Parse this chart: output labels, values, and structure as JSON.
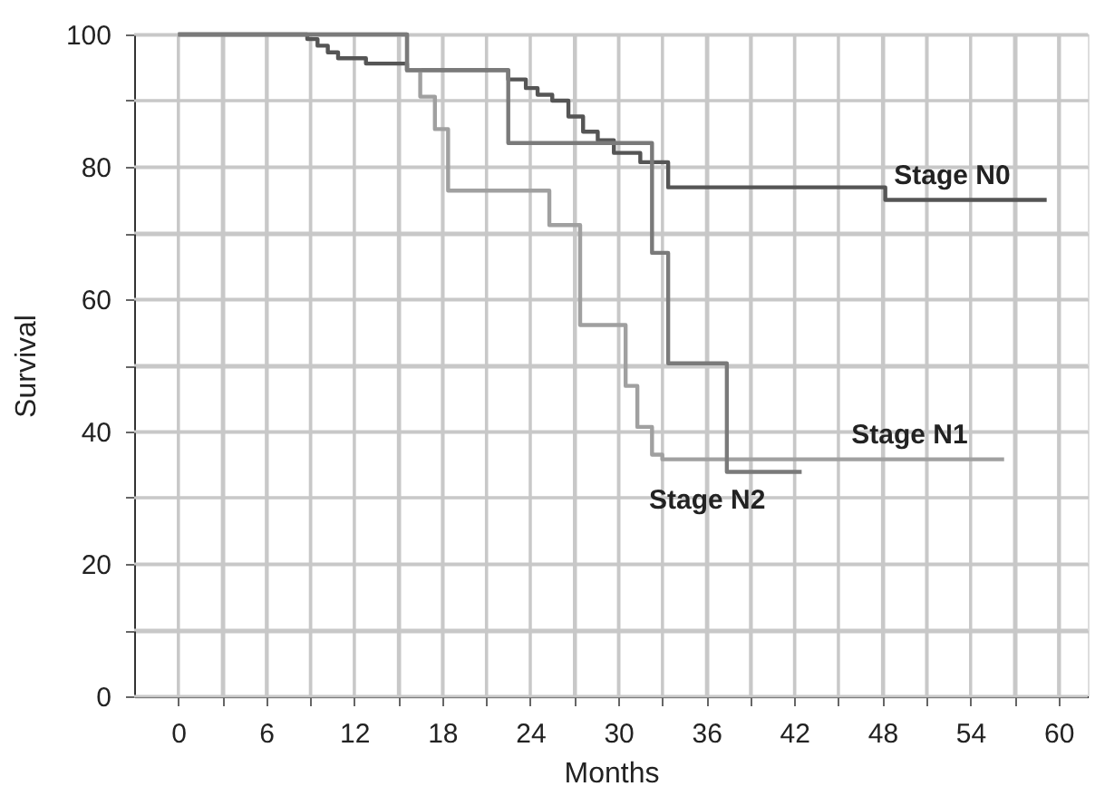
{
  "chart_data": {
    "type": "step",
    "xlabel": "Months",
    "ylabel": "Survival",
    "xlim": [
      -3,
      62
    ],
    "ylim": [
      0,
      100
    ],
    "xticks": [
      0,
      {
        "value": 3,
        "label": null
      },
      6,
      {
        "value": 9,
        "label": null
      },
      12,
      {
        "value": 15,
        "label": null
      },
      18,
      {
        "value": 21,
        "label": null
      },
      24,
      {
        "value": 27,
        "label": null
      },
      30,
      {
        "value": 33,
        "label": null
      },
      36,
      {
        "value": 39,
        "label": null
      },
      42,
      {
        "value": 45,
        "label": null
      },
      48,
      {
        "value": 51,
        "label": null
      },
      54,
      {
        "value": 57,
        "label": null
      },
      60
    ],
    "yticks": [
      0,
      {
        "value": 10,
        "label": null
      },
      20,
      {
        "value": 30,
        "label": null
      },
      40,
      {
        "value": 50,
        "label": null
      },
      60,
      {
        "value": 70,
        "label": null
      },
      80,
      {
        "value": 90,
        "label": null
      },
      100
    ],
    "grid": true,
    "legend": false,
    "marker": "none",
    "line_style": "solid",
    "series": [
      {
        "name": "Stage N0",
        "color": "#555555",
        "x": [
          0,
          8.8,
          9.5,
          10.2,
          10.9,
          12.8,
          15.6,
          22.5,
          23.7,
          24.5,
          25.5,
          26.6,
          27.6,
          28.6,
          29.7,
          31.5,
          33.4,
          48.2,
          59.2
        ],
        "values": [
          100,
          99.3,
          98.3,
          97.3,
          96.4,
          95.6,
          94.6,
          93.2,
          91.9,
          90.9,
          90,
          87.6,
          85.3,
          84,
          82.1,
          80.7,
          76.9,
          75,
          75
        ]
      },
      {
        "name": "Stage N1",
        "color": "#a0a0a0",
        "x": [
          0,
          15.6,
          16.5,
          17.5,
          18.4,
          25.3,
          27.4,
          30.5,
          31.3,
          32.3,
          33.0,
          56.3
        ],
        "values": [
          100,
          94.6,
          90.6,
          85.7,
          76.4,
          71.2,
          56.1,
          46.9,
          40.7,
          36.5,
          35.8,
          35.8
        ]
      },
      {
        "name": "Stage N2",
        "color": "#7a7a7a",
        "x": [
          0,
          15.6,
          22.5,
          32.3,
          33.4,
          37.4,
          42.5
        ],
        "values": [
          100,
          94.6,
          83.6,
          67,
          50.3,
          33.9,
          33.9
        ]
      }
    ]
  }
}
